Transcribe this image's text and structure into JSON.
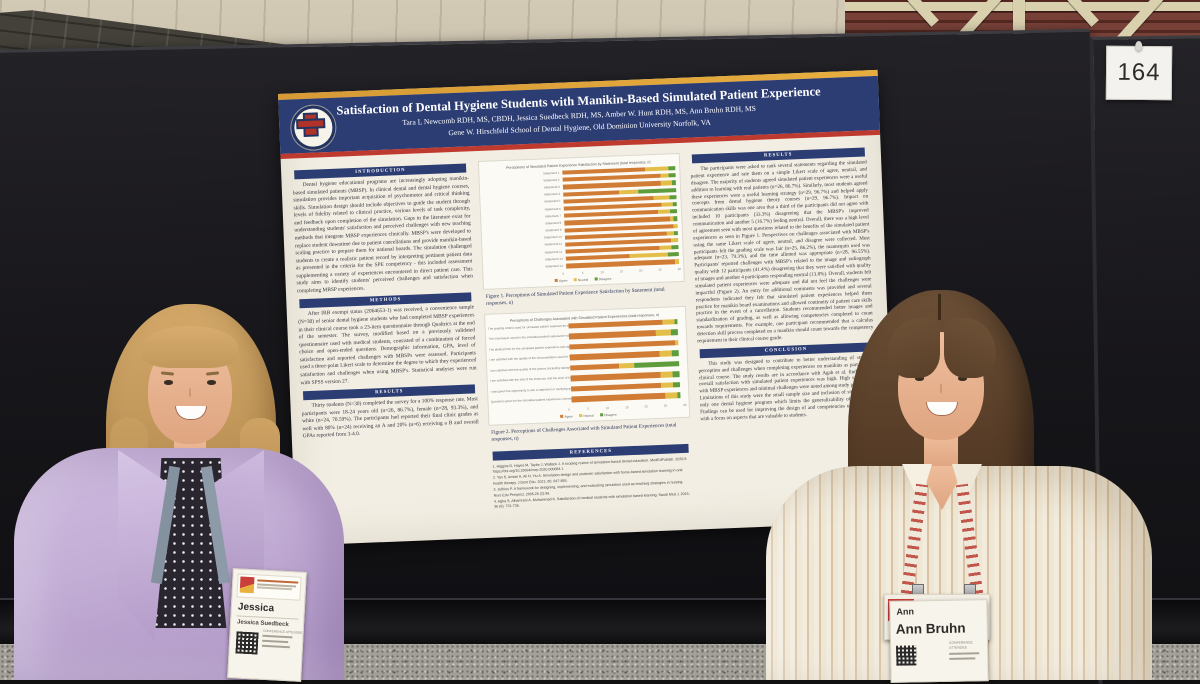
{
  "scene": {
    "board_number": "164"
  },
  "poster": {
    "title": "Satisfaction of Dental Hygiene Students with Manikin-Based Simulated Patient Experience",
    "authors": "Tara L Newcomb RDH, MS, CBDH, Jessica Suedbeck RDH, MS, Amber W. Hunt RDH, MS, Ann Bruhn RDH, MS",
    "affiliation": "Gene W. Hirschfeld School of Dental Hygiene, Old Dominion University Norfolk, VA",
    "sections": {
      "introduction": {
        "heading": "INTRODUCTION",
        "text": "Dental hygiene educational programs are increasingly adopting manikin-based simulated patients (MBSP). In clinical dental and dental hygiene courses, simulation provides important acquisition of psychomotor and critical thinking skills. Simulation design should include objectives to guide the student through levels of fidelity related to clinical practice, various levels of task complexity, and feedback upon completion of the simulation. Gaps in the literature exist for understanding students' satisfaction and perceived challenges with new teaching methods that integrate MBSP experiences clinically. MBSP's were developed to replace student downtime due to patient cancellations and provide manikin-based scaling practice to prepare them for national boards. The simulation challenged students to create a realistic patient record by interpreting pertinent patient data as presented in the criteria for the SPE competency - this included assessment supplementing a variety of experiences encountered in direct patient care. This study aims to identify students' perceived challenges and satisfaction when completing MBSP experiences."
      },
      "methods": {
        "heading": "METHODS",
        "text": "After IRB exempt status (2064653-1) was received, a convenience sample (N=30) of senior dental hygiene students who had completed MBSP experiences in their clinical course took a 23-item questionnaire through Qualtrics at the end of the semester. The survey, modified based on a previously validated questionnaire used with medical students, consisted of a combination of forced choice and open-ended questions. Demographic information, GPA, level of satisfaction and reported challenges with MBSPs were assessed. Participants used a three-point Likert scale to determine the degree to which they experienced satisfaction and challenges when using MBSP's. Statistical analyses were run with SPSS version 27."
      },
      "results_left": {
        "heading": "RESULTS",
        "text": "Thirty students (N=30) completed the survey for a 100% response rate. Most participants were 18-24 years old (n=26, 86.7%), female (n=28, 93.3%), and white (n=24, 70.59%). The participants had reported their final clinic grades as well with 80% (n=24) receiving an A and 20% (n=6) receiving a B and overall GPAs reported from 3-4.0."
      },
      "results_right": {
        "heading": "RESULTS",
        "text": "The participants were asked to rank several statements regarding the simulated patient experience and rate them on a simple Likert scale of agree, neutral, and disagree. The majority of students agreed simulated patient experiences were a useful addition to learning with real patients (n=26, 86.7%). Similarly, most students agreed these experiences were a useful learning strategy (n=29, 96.7%) and helped apply concepts from dental hygiene theory courses (n=29, 96.7%). Impact on communication skills was one area that a third of the participants did not agree with included 10 participants (33.3%) disagreeing that the MBSP's improved communication and another 5 (16.7%) feeling neutral. Overall, there was a high level of agreement seen with most questions related to the benefits of the simulated patient experiences as seen in Figure 1. Perspectives on challenges associated with MBSP's using the same Likert scale of agree, neutral, and disagree were collected. Most participants felt the grading scale was fair (n=25, 86.2%), the mannequin used was adequate (n=23, 79.3%), and the time allotted was appropriate (n=28, 96.55%). Participants' reported challenges with MBSP's related to the image and radiograph quality with 12 participants (41.4%) disagreeing that they were satisfied with quality of images and another 4 participants responding neutral (13.8%). Overall, students felt simulated patient experiences were adequate and did not feel the challenges were impactful (Figure 2). An entry for additional comments was provided and several respondents indicated they felt that simulated patient experiences helped them practice for manikin board examinations and allowed continuity of patient care skills practice in the event of a cancellation. Students recommended better images and standardization of grading, as well as allowing competencies completed to count towards requirements. For example, one participant recommended that a calculus detection skill process completed on a manikin should count towards the competency requirement in their clinical course grade."
      },
      "conclusion": {
        "heading": "CONCLUSION",
        "text": "This study was designed to contribute to better understanding of students' perception and challenges when completing experiences on manikins as part of their clinical course. The study results are in accordance with Agah et al. findings that overall satisfaction with simulated patient experiences was high. High satisfaction with MBSP experiences and minimal challenges were noted among study participants. Limitations of this study were the small sample size and inclusion of students from only one dental hygiene program which limits the generalizability of the results. Findings can be used for improving the design of and competencies using MBSP's with a focus on aspects that are valuable to students."
      },
      "references": {
        "heading": "REFERENCES",
        "items": [
          "1. Higgins D, Hayes M, Taylor J, Wallace J. A scoping review of simulation-based dental education. MedEdPublish. 2020;9. https://doi.org/10.15694/mep.2020.000084.1",
          "2. Tan S, Ansari A, Ali N, Yiu A. Simulation design and students' satisfaction with home-based simulation learning in oral health therapy. J Dent Edu. 2021; 85: 847-855.",
          "3. Jeffries P. A framework for designing, implementing, and evaluating simulation used as teaching strategies in nursing. Nurs Edu Perspect. 2005;26 (2):96.",
          "4. Agha S, Alhamrani A, Muhammad K. Satisfaction of medical students with simulation based learning. Saudi Med J. 2015; 36 (6): 731-736."
        ]
      },
      "figure1_caption": "Figure 1. Perceptions of Simulated Patient Experience Satisfaction by Statement (total responses, n)",
      "figure2_caption": "Figure 2. Perceptions of Challenges Associated with Simulated Patient Experiences (total responses, n)"
    }
  },
  "badges": {
    "left": {
      "first_name": "Jessica",
      "full_name": "Jessica Suedbeck",
      "role": "CONFERENCE ATTENDEE"
    },
    "right": {
      "first_name": "Ann",
      "full_name": "Ann Bruhn",
      "role": "CONFERENCE ATTENDEE"
    }
  },
  "colors": {
    "agree": "#d07c35",
    "neutral": "#e3bf4a",
    "disagree": "#5e9c3c",
    "poster_header": "#2c3d74",
    "poster_red_stripe": "#bf3a2e",
    "poster_top_stripe": "#e7ae3f"
  },
  "chart_data": [
    {
      "type": "bar",
      "subtype": "horizontal-stacked",
      "title": "Perceptions of Simulated Patient Experience Satisfaction by Statement (total responses, n)",
      "categories": [
        "Statement 1",
        "Statement 2",
        "Statement 3",
        "Statement 4",
        "Statement 5",
        "Statement 6",
        "Statement 7",
        "Statement 8",
        "Statement 9",
        "Statement 10",
        "Statement 11",
        "Statement 12",
        "Statement 13",
        "Statement 14"
      ],
      "series": [
        {
          "name": "Agree",
          "color": "#d07c35",
          "values": [
            22,
            26,
            26,
            15,
            24,
            26,
            25,
            28,
            29,
            27,
            28,
            25,
            17,
            29
          ]
        },
        {
          "name": "Neutral",
          "color": "#e3bf4a",
          "values": [
            6,
            2,
            3,
            5,
            4,
            3,
            3,
            1,
            1,
            2,
            2,
            3,
            10,
            1
          ]
        },
        {
          "name": "Disagree",
          "color": "#5e9c3c",
          "values": [
            2,
            2,
            1,
            10,
            2,
            1,
            2,
            1,
            0,
            1,
            0,
            2,
            3,
            0
          ]
        }
      ],
      "xlim": [
        0,
        30
      ],
      "ticks": [
        0,
        5,
        10,
        15,
        20,
        25,
        30
      ],
      "legend_position": "bottom",
      "grid": false
    },
    {
      "type": "bar",
      "subtype": "horizontal-stacked",
      "title": "Perceptions of Challenges Associated with Simulated Patient Experiences (total responses, n)",
      "categories": [
        "The grading criteria used for simulated patient experiences was fair",
        "The mannequin used for the simulated patient experience was adequate",
        "The allotted time for the simulated patient experience was appropriate",
        "I am satisfied with the quality of the documentation used for the simulated patient experience",
        "I am satisfied with the quality of the photos (including radiographs) used for the simulated patient experience",
        "I am satisfied with the skill of the instructor and the level of knowledge they had with the simulated patient experience",
        "I was given the opportunity to ask a statement or clarifying question when needed",
        "Questions given for the simulated patient experience covered an appropriate breadth of skill"
      ],
      "series": [
        {
          "name": "Agree",
          "color": "#d07c35",
          "values": [
            25,
            23,
            28,
            24,
            13,
            24,
            24,
            25
          ]
        },
        {
          "name": "Neutral",
          "color": "#e3bf4a",
          "values": [
            3,
            4,
            1,
            3,
            4,
            3,
            3,
            3
          ]
        },
        {
          "name": "Disagree",
          "color": "#5e9c3c",
          "values": [
            1,
            2,
            0,
            2,
            12,
            2,
            2,
            1
          ]
        }
      ],
      "xlim": [
        0,
        30
      ],
      "ticks": [
        0,
        5,
        10,
        15,
        20,
        25,
        30
      ],
      "legend_position": "bottom",
      "grid": false
    }
  ]
}
